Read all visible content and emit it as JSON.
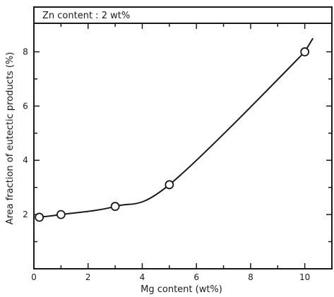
{
  "chart_data": {
    "type": "scatter",
    "title": "Zn content : 2 wt%",
    "xlabel": "Mg content (wt%)",
    "ylabel": "Area fraction of eutectic products (%)",
    "x_ticks": [
      "0",
      "2",
      "4",
      "6",
      "8",
      "10"
    ],
    "y_ticks": [
      "2",
      "4",
      "6",
      "8"
    ],
    "xlim": [
      0,
      11
    ],
    "ylim": [
      0,
      9
    ],
    "grid": false,
    "series": [
      {
        "points": [
          {
            "x": 0.2,
            "y": 1.9
          },
          {
            "x": 1.0,
            "y": 2.0
          },
          {
            "x": 3.0,
            "y": 2.3
          },
          {
            "x": 5.0,
            "y": 3.1
          },
          {
            "x": 10.0,
            "y": 8.0
          }
        ],
        "curve": true
      }
    ]
  }
}
